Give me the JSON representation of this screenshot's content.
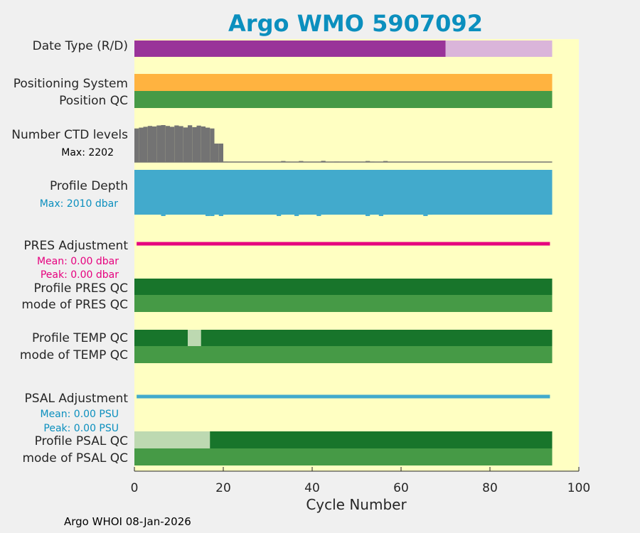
{
  "chart_data": {
    "type": "bar",
    "title": "Argo WMO 5907092",
    "xlabel": "Cycle Number",
    "xlim": [
      0,
      100
    ],
    "xticks": [
      0,
      20,
      40,
      60,
      80,
      100
    ],
    "last_cycle": 93,
    "rows": [
      {
        "label": "Date Type (R/D)",
        "segments": [
          {
            "from": 0,
            "to": 70,
            "color": "#993399",
            "value": "R"
          },
          {
            "from": 70,
            "to": 93,
            "color": "#dab5da",
            "value": "D"
          }
        ]
      },
      {
        "label": "Positioning System",
        "segments": [
          {
            "from": 0,
            "to": 93,
            "color": "#ffb340",
            "value": "GPS"
          }
        ]
      },
      {
        "label": "Position QC",
        "segments": [
          {
            "from": 0,
            "to": 93,
            "color": "#469a46",
            "value": "1"
          }
        ]
      },
      {
        "label": "Profile PRES QC",
        "segments": [
          {
            "from": 0,
            "to": 93,
            "color": "#18752b",
            "value": "A"
          }
        ]
      },
      {
        "label": "mode of PRES QC",
        "segments": [
          {
            "from": 0,
            "to": 93,
            "color": "#469a46",
            "value": "1"
          }
        ]
      },
      {
        "label": "Profile TEMP QC",
        "segments": [
          {
            "from": 0,
            "to": 12,
            "color": "#18752b",
            "value": "A"
          },
          {
            "from": 12,
            "to": 15,
            "color": "#bdd9b1",
            "value": "B"
          },
          {
            "from": 15,
            "to": 93,
            "color": "#18752b",
            "value": "A"
          }
        ]
      },
      {
        "label": "mode of TEMP QC",
        "segments": [
          {
            "from": 0,
            "to": 93,
            "color": "#469a46",
            "value": "1"
          }
        ]
      },
      {
        "label": "Profile PSAL QC",
        "segments": [
          {
            "from": 0,
            "to": 17,
            "color": "#bdd9b1",
            "value": "B"
          },
          {
            "from": 17,
            "to": 93,
            "color": "#18752b",
            "value": "A"
          }
        ]
      },
      {
        "label": "mode of PSAL QC",
        "segments": [
          {
            "from": 0,
            "to": 93,
            "color": "#469a46",
            "value": "1"
          }
        ]
      }
    ],
    "ctd_levels": {
      "label": "Number CTD levels",
      "max_label": "Max: 2202",
      "max": 2202,
      "cycles": [
        0,
        1,
        2,
        3,
        4,
        5,
        6,
        7,
        8,
        9,
        10,
        11,
        12,
        13,
        14,
        15,
        16,
        17,
        18,
        19,
        20,
        33,
        34,
        37,
        42,
        45,
        52,
        53,
        56
      ],
      "values": [
        2000,
        2050,
        2100,
        2150,
        2120,
        2180,
        2202,
        2150,
        2100,
        2180,
        2140,
        2060,
        2190,
        2080,
        2170,
        2120,
        2050,
        2000,
        1100,
        1100,
        25,
        60,
        25,
        60,
        70,
        25,
        60,
        25,
        60
      ],
      "color": "#737373"
    },
    "profile_depth": {
      "label": "Profile Depth",
      "max_label": "Max: 2010 dbar",
      "max": 2010,
      "cycles": [
        0,
        1,
        2,
        3,
        4,
        5,
        6,
        7,
        16,
        17,
        19,
        20,
        32,
        33,
        36,
        37,
        41,
        42,
        52,
        53,
        55,
        56,
        65,
        66
      ],
      "values": [
        1650,
        1650,
        1650,
        1700,
        1700,
        1850,
        2010,
        1950,
        2010,
        2010,
        2010,
        1950,
        2010,
        1950,
        2010,
        1950,
        2010,
        1950,
        2010,
        1950,
        2010,
        1950,
        2010,
        1950
      ],
      "baseline": 1950,
      "color": "#42aacc"
    },
    "pres_adjustment": {
      "label": "PRES Adjustment",
      "mean": "Mean: 0.00 dbar",
      "peak": "Peak: 0.00 dbar",
      "color": "#e6007e",
      "value": 0.0
    },
    "psal_adjustment": {
      "label": "PSAL Adjustment",
      "mean": "Mean: 0.00 PSU",
      "peak": "Peak: 0.00 PSU",
      "color": "#42aacc",
      "value": 0.0
    }
  },
  "colors": {
    "plot_bg": "#ffffc2",
    "title": "#0b8fbe",
    "pres_stats": "#e6007e",
    "psal_stats": "#0b8fbe"
  },
  "footer": "Argo WHOI 08-Jan-2026"
}
